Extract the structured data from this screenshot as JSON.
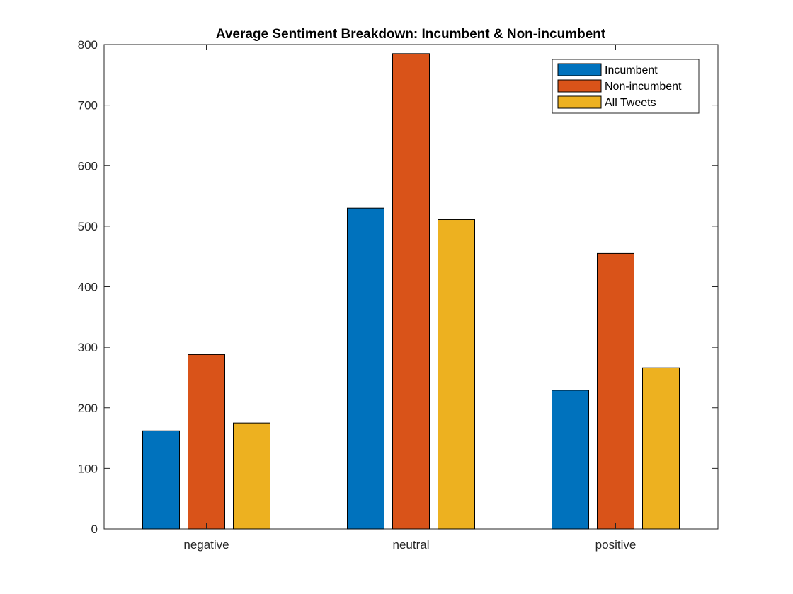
{
  "chart_data": {
    "type": "bar",
    "title": "Average Sentiment Breakdown: Incumbent & Non-incumbent",
    "xlabel": "",
    "ylabel": "",
    "categories": [
      "negative",
      "neutral",
      "positive"
    ],
    "series": [
      {
        "name": "Incumbent",
        "color": "#0072BD",
        "values": [
          162,
          530,
          229
        ]
      },
      {
        "name": "Non-incumbent",
        "color": "#D95319",
        "values": [
          288,
          785,
          455
        ]
      },
      {
        "name": "All Tweets",
        "color": "#EDB120",
        "values": [
          175,
          511,
          266
        ]
      }
    ],
    "ylim": [
      0,
      800
    ],
    "yticks": [
      0,
      100,
      200,
      300,
      400,
      500,
      600,
      700,
      800
    ],
    "grid": false,
    "legend_position": "top-right"
  }
}
